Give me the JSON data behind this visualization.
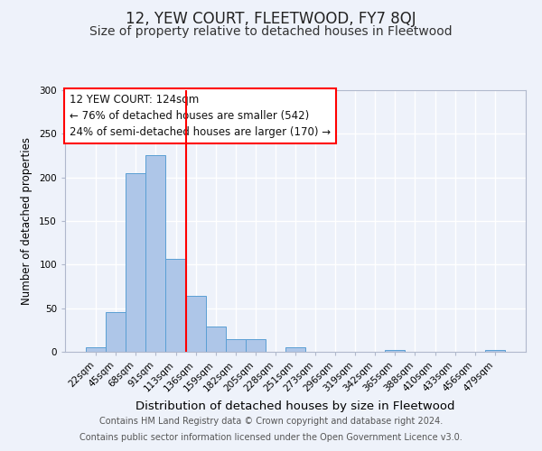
{
  "title": "12, YEW COURT, FLEETWOOD, FY7 8QJ",
  "subtitle": "Size of property relative to detached houses in Fleetwood",
  "xlabel": "Distribution of detached houses by size in Fleetwood",
  "ylabel": "Number of detached properties",
  "bar_labels": [
    "22sqm",
    "45sqm",
    "68sqm",
    "91sqm",
    "113sqm",
    "136sqm",
    "159sqm",
    "182sqm",
    "205sqm",
    "228sqm",
    "251sqm",
    "273sqm",
    "296sqm",
    "319sqm",
    "342sqm",
    "365sqm",
    "388sqm",
    "410sqm",
    "433sqm",
    "456sqm",
    "479sqm"
  ],
  "bar_values": [
    5,
    46,
    205,
    226,
    107,
    64,
    29,
    15,
    15,
    0,
    5,
    0,
    0,
    0,
    0,
    2,
    0,
    0,
    0,
    0,
    2
  ],
  "bar_color": "#aec6e8",
  "bar_edge_color": "#5a9fd4",
  "ylim": [
    0,
    300
  ],
  "yticks": [
    0,
    50,
    100,
    150,
    200,
    250,
    300
  ],
  "vline_x_index": 4.5,
  "vline_color": "red",
  "annotation_text_line1": "12 YEW COURT: 124sqm",
  "annotation_text_line2": "← 76% of detached houses are smaller (542)",
  "annotation_text_line3": "24% of semi-detached houses are larger (170) →",
  "footer_line1": "Contains HM Land Registry data © Crown copyright and database right 2024.",
  "footer_line2": "Contains public sector information licensed under the Open Government Licence v3.0.",
  "background_color": "#eef2fa",
  "plot_bg_color": "#eef2fa",
  "grid_color": "#ffffff",
  "title_fontsize": 12,
  "subtitle_fontsize": 10,
  "xlabel_fontsize": 9.5,
  "ylabel_fontsize": 8.5,
  "tick_fontsize": 7.5,
  "annotation_fontsize": 8.5,
  "footer_fontsize": 7
}
